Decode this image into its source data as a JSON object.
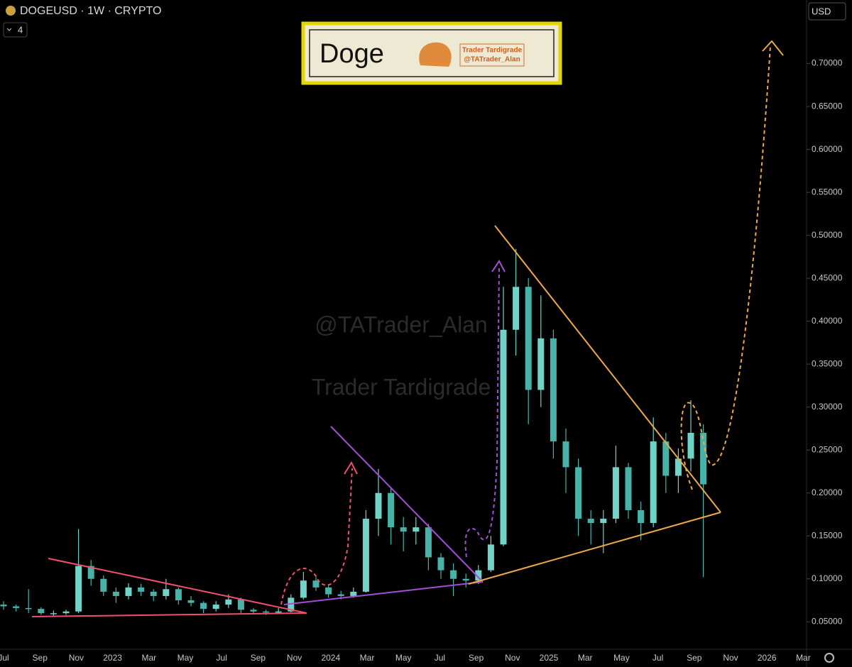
{
  "chart_data": {
    "type": "candlestick",
    "title": "DOGEUSD · 1W · CRYPTO",
    "indicator_badge": "4",
    "currency": "USD",
    "banner": {
      "title": "Doge",
      "author": "Trader Tardigrade",
      "handle": "@TATrader_Alan"
    },
    "watermarks": [
      "@TATrader_Alan",
      "Trader Tardigrade"
    ],
    "up_color": "#6fd3c8",
    "down_color": "#47b3a8",
    "ylim": [
      0.018,
      0.774
    ],
    "yticks": [
      {
        "value": 0.05,
        "label": "0.05000"
      },
      {
        "value": 0.1,
        "label": "0.10000"
      },
      {
        "value": 0.15,
        "label": "0.15000"
      },
      {
        "value": 0.2,
        "label": "0.20000"
      },
      {
        "value": 0.25,
        "label": "0.25000"
      },
      {
        "value": 0.3,
        "label": "0.30000"
      },
      {
        "value": 0.35,
        "label": "0.35000"
      },
      {
        "value": 0.4,
        "label": "0.40000"
      },
      {
        "value": 0.45,
        "label": "0.45000"
      },
      {
        "value": 0.5,
        "label": "0.50000"
      },
      {
        "value": 0.55,
        "label": "0.55000"
      },
      {
        "value": 0.6,
        "label": "0.60000"
      },
      {
        "value": 0.65,
        "label": "0.65000"
      },
      {
        "value": 0.7,
        "label": "0.70000"
      }
    ],
    "x_labels": [
      "Jul",
      "Sep",
      "Nov",
      "2023",
      "Mar",
      "May",
      "Jul",
      "Sep",
      "Nov",
      "2024",
      "Mar",
      "May",
      "Jul",
      "Sep",
      "Nov",
      "2025",
      "Mar",
      "May",
      "Jul",
      "Sep",
      "Nov",
      "2026",
      "Mar"
    ],
    "candles": [
      [
        0.07,
        0.074,
        0.064,
        0.068
      ],
      [
        0.068,
        0.07,
        0.062,
        0.066
      ],
      [
        0.066,
        0.088,
        0.06,
        0.065
      ],
      [
        0.065,
        0.067,
        0.058,
        0.06
      ],
      [
        0.06,
        0.063,
        0.057,
        0.06
      ],
      [
        0.06,
        0.064,
        0.058,
        0.062
      ],
      [
        0.062,
        0.158,
        0.06,
        0.115
      ],
      [
        0.115,
        0.122,
        0.092,
        0.1
      ],
      [
        0.1,
        0.104,
        0.08,
        0.085
      ],
      [
        0.085,
        0.09,
        0.072,
        0.08
      ],
      [
        0.08,
        0.095,
        0.076,
        0.09
      ],
      [
        0.09,
        0.094,
        0.08,
        0.085
      ],
      [
        0.085,
        0.088,
        0.074,
        0.08
      ],
      [
        0.08,
        0.1,
        0.076,
        0.088
      ],
      [
        0.088,
        0.09,
        0.07,
        0.075
      ],
      [
        0.075,
        0.08,
        0.068,
        0.072
      ],
      [
        0.072,
        0.074,
        0.06,
        0.065
      ],
      [
        0.065,
        0.074,
        0.062,
        0.07
      ],
      [
        0.07,
        0.082,
        0.066,
        0.076
      ],
      [
        0.076,
        0.078,
        0.06,
        0.064
      ],
      [
        0.064,
        0.066,
        0.059,
        0.062
      ],
      [
        0.062,
        0.064,
        0.058,
        0.061
      ],
      [
        0.061,
        0.066,
        0.059,
        0.062
      ],
      [
        0.062,
        0.082,
        0.061,
        0.078
      ],
      [
        0.078,
        0.108,
        0.076,
        0.098
      ],
      [
        0.098,
        0.102,
        0.086,
        0.09
      ],
      [
        0.09,
        0.094,
        0.078,
        0.082
      ],
      [
        0.082,
        0.086,
        0.076,
        0.08
      ],
      [
        0.08,
        0.09,
        0.078,
        0.085
      ],
      [
        0.085,
        0.18,
        0.084,
        0.17
      ],
      [
        0.17,
        0.228,
        0.15,
        0.2
      ],
      [
        0.2,
        0.205,
        0.14,
        0.16
      ],
      [
        0.16,
        0.172,
        0.132,
        0.155
      ],
      [
        0.155,
        0.172,
        0.14,
        0.16
      ],
      [
        0.16,
        0.164,
        0.11,
        0.125
      ],
      [
        0.125,
        0.13,
        0.1,
        0.11
      ],
      [
        0.11,
        0.118,
        0.08,
        0.1
      ],
      [
        0.1,
        0.106,
        0.09,
        0.098
      ],
      [
        0.098,
        0.116,
        0.094,
        0.11
      ],
      [
        0.11,
        0.15,
        0.108,
        0.14
      ],
      [
        0.14,
        0.44,
        0.138,
        0.39
      ],
      [
        0.39,
        0.484,
        0.36,
        0.44
      ],
      [
        0.44,
        0.45,
        0.28,
        0.32
      ],
      [
        0.32,
        0.43,
        0.3,
        0.38
      ],
      [
        0.38,
        0.39,
        0.24,
        0.26
      ],
      [
        0.26,
        0.275,
        0.2,
        0.23
      ],
      [
        0.23,
        0.24,
        0.15,
        0.17
      ],
      [
        0.17,
        0.18,
        0.14,
        0.165
      ],
      [
        0.165,
        0.18,
        0.13,
        0.17
      ],
      [
        0.17,
        0.255,
        0.165,
        0.23
      ],
      [
        0.23,
        0.235,
        0.17,
        0.18
      ],
      [
        0.18,
        0.19,
        0.145,
        0.165
      ],
      [
        0.165,
        0.288,
        0.16,
        0.26
      ],
      [
        0.26,
        0.27,
        0.2,
        0.22
      ],
      [
        0.22,
        0.252,
        0.2,
        0.24
      ],
      [
        0.24,
        0.308,
        0.225,
        0.27
      ],
      [
        0.27,
        0.28,
        0.102,
        0.21
      ]
    ]
  }
}
